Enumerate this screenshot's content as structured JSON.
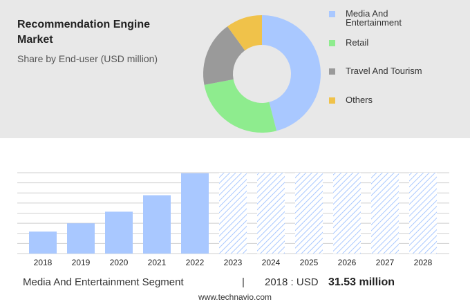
{
  "chart_data": [
    {
      "type": "donut",
      "title": "Recommendation Engine Market",
      "subtitle": "Share by End-user (USD million)",
      "categories": [
        "Media And Entertainment",
        "Retail",
        "Travel And Tourism",
        "Others"
      ],
      "values": [
        46,
        26,
        18,
        10
      ],
      "colors": [
        "#a9c8ff",
        "#8eec8e",
        "#9a9a9a",
        "#f0c24a"
      ]
    },
    {
      "type": "bar",
      "title": "Media And Entertainment Segment",
      "categories": [
        "2018",
        "2019",
        "2020",
        "2021",
        "2022",
        "2023",
        "2024",
        "2025",
        "2026",
        "2027",
        "2028"
      ],
      "values": [
        31.53,
        43.4,
        60.1,
        83.7,
        115.3,
        null,
        null,
        null,
        null,
        null,
        null
      ],
      "value_labels": [
        "31.53 million",
        null,
        null,
        null,
        null,
        null,
        null,
        null,
        null,
        null,
        null
      ],
      "period_label": "2018 : USD",
      "separator": "|",
      "color": "#a9c8ff",
      "ylim": [
        0,
        116
      ],
      "grid": true
    },
    {
      "type": "footer",
      "source": "www.technavio.com"
    }
  ]
}
